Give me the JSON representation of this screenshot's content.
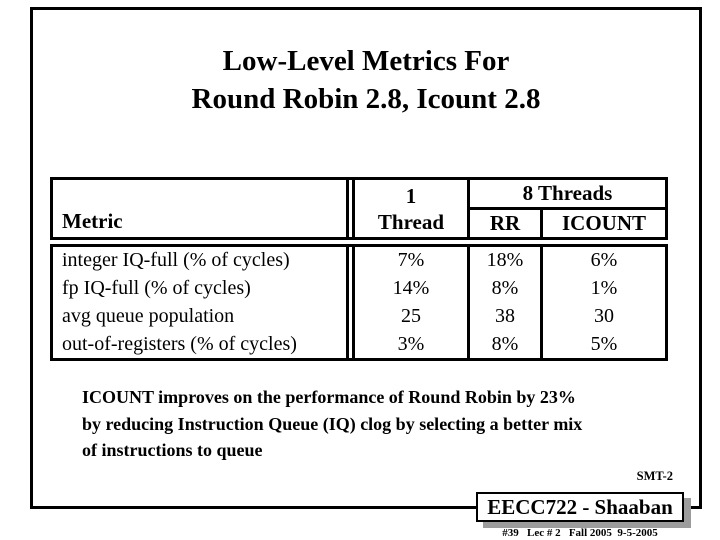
{
  "slide": {
    "title_line1": "Low-Level Metrics For",
    "title_line2": "Round Robin 2.8, Icount 2.8",
    "table": {
      "header": {
        "metric": "Metric",
        "one_thread_line1": "1",
        "one_thread_line2": "Thread",
        "eight_threads": "8 Threads",
        "rr": "RR",
        "icount": "ICOUNT"
      },
      "rows": [
        {
          "metric": "integer IQ-full (% of cycles)",
          "one_thread": "7%",
          "rr": "18%",
          "icount": "6%"
        },
        {
          "metric": "fp IQ-full (% of cycles)",
          "one_thread": "14%",
          "rr": "8%",
          "icount": "1%"
        },
        {
          "metric": "avg queue population",
          "one_thread": "25",
          "rr": "38",
          "icount": "30"
        },
        {
          "metric": "out-of-registers (% of cycles)",
          "one_thread": "3%",
          "rr": "8%",
          "icount": "5%"
        }
      ]
    },
    "body_text": [
      "ICOUNT improves on the performance of Round Robin by 23%",
      "by reducing Instruction Queue (IQ) clog by selecting a better mix",
      "of instructions to queue"
    ],
    "slide_tag": "SMT-2",
    "footer": {
      "course": "EECC722 - Shaaban",
      "lecture_info": "#39   Lec # 2   Fall 2005  9-5-2005"
    },
    "colors": {
      "text": "#000000",
      "background": "#ffffff",
      "shadow": "#9c9c9c"
    }
  }
}
